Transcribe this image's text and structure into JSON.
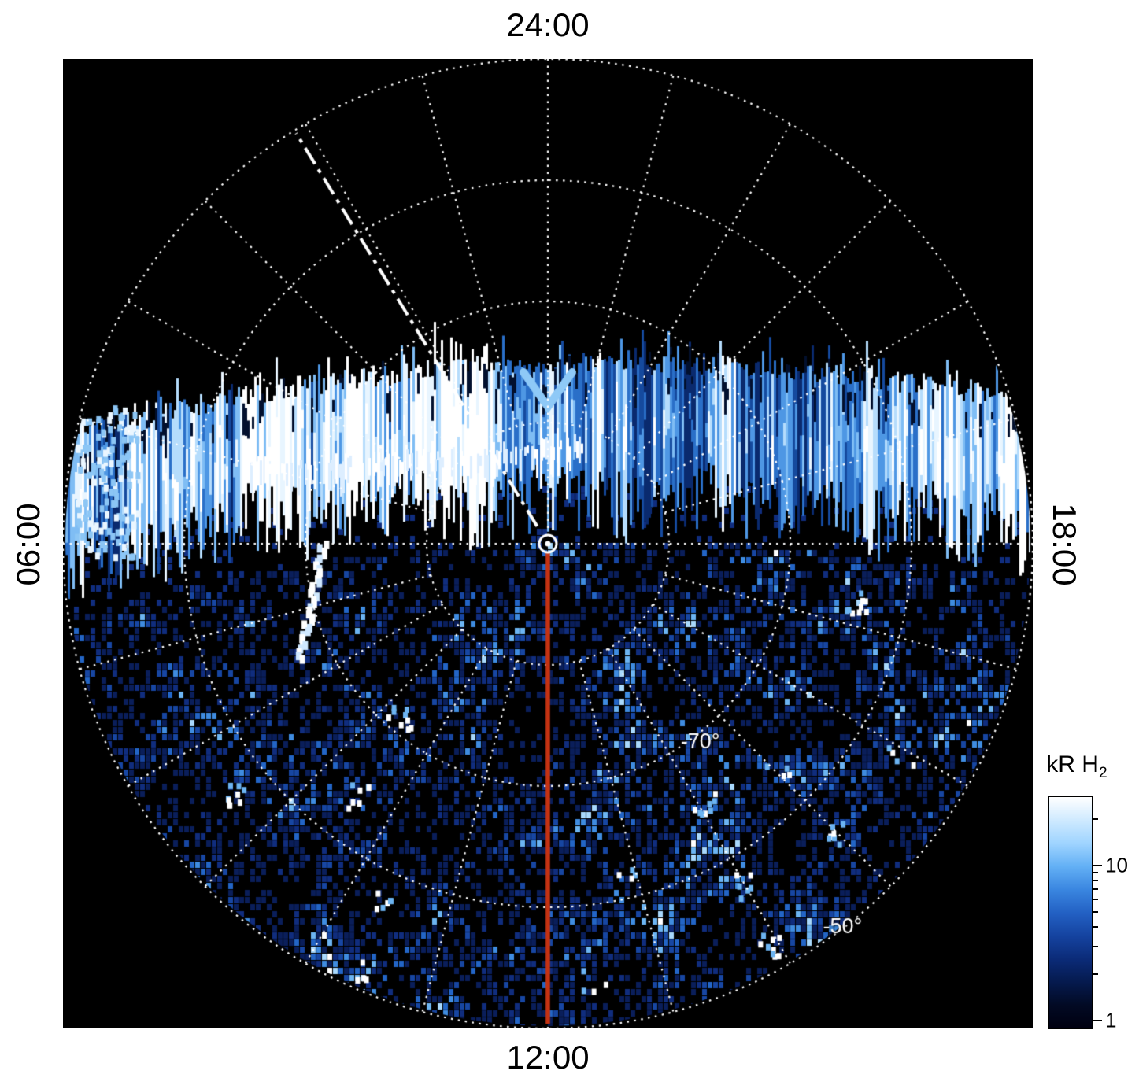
{
  "figure": {
    "page_background": "#ffffff",
    "plot_background": "#000000"
  },
  "axis_labels": {
    "top": "24:00",
    "bottom": "12:00",
    "left": "06:00",
    "right": "18:00"
  },
  "colorbar": {
    "title": "kR H",
    "title_subscript": "2",
    "scale": "log",
    "gradient": [
      "#ffffff",
      "#cfeaff",
      "#9fd4ff",
      "#63b0f5",
      "#3a86e0",
      "#2361c4",
      "#1543a0",
      "#0b2b78",
      "#051a4e",
      "#020a24",
      "#000010"
    ],
    "ticks": [
      {
        "label": "10",
        "pos": 0.297,
        "major": true
      },
      {
        "label": "1",
        "pos": 0.963,
        "major": true
      },
      {
        "pos": 0.097,
        "major": false
      },
      {
        "pos": 0.327,
        "major": false
      },
      {
        "pos": 0.361,
        "major": false
      },
      {
        "pos": 0.399,
        "major": false
      },
      {
        "pos": 0.444,
        "major": false
      },
      {
        "pos": 0.497,
        "major": false
      },
      {
        "pos": 0.561,
        "major": false
      },
      {
        "pos": 0.645,
        "major": false
      },
      {
        "pos": 0.762,
        "major": false
      }
    ]
  },
  "chart_data": {
    "type": "heatmap",
    "projection": "polar-local-time",
    "quantity": "auroral H2 emission brightness",
    "units": "kR",
    "local_time_labels": [
      {
        "text": "24:00",
        "position": "top"
      },
      {
        "text": "18:00",
        "position": "right"
      },
      {
        "text": "12:00",
        "position": "bottom"
      },
      {
        "text": "06:00",
        "position": "left"
      }
    ],
    "hour_spoke_interval_deg": 15,
    "latitude_gridlines_deg": [
      -80,
      -70,
      -60,
      -50
    ],
    "latitude_labels": [
      {
        "text": "-70°",
        "lat": -70
      },
      {
        "text": "-50°",
        "lat": -50
      }
    ],
    "colorbar_range_kR": [
      1,
      28
    ],
    "colorbar_tick_values": [
      1,
      10
    ],
    "features": {
      "main_emission": "bright blue-white vertically streaked auroral band spanning the disk equatorward of the nightside gap",
      "noise_field": "speckled faint blue emission filling the dayside/lower portion of the disk down to -50 degrees",
      "meridian_line": {
        "from": "pole",
        "to": "12:00 limb",
        "color": "#c53212"
      },
      "dash_dot_line": {
        "angle_hours": 2.1,
        "color": "#ffffff"
      },
      "pole_marker": "small white circle with dot at the pole"
    },
    "render": {
      "seed": 1337,
      "grid_color": "#ffffff",
      "band_palette": [
        "#0a2a6e",
        "#154a9e",
        "#2a6fc8",
        "#4e97e4",
        "#7fbdf4",
        "#b5dcfc",
        "#e8f5ff",
        "#ffffff"
      ],
      "speckle_palette": [
        "#0a1e5a",
        "#102d7e",
        "#1746a2",
        "#2365c6",
        "#3f8ce0",
        "#6cb4f2",
        "#a8d8fc",
        "#ffffff"
      ]
    }
  }
}
